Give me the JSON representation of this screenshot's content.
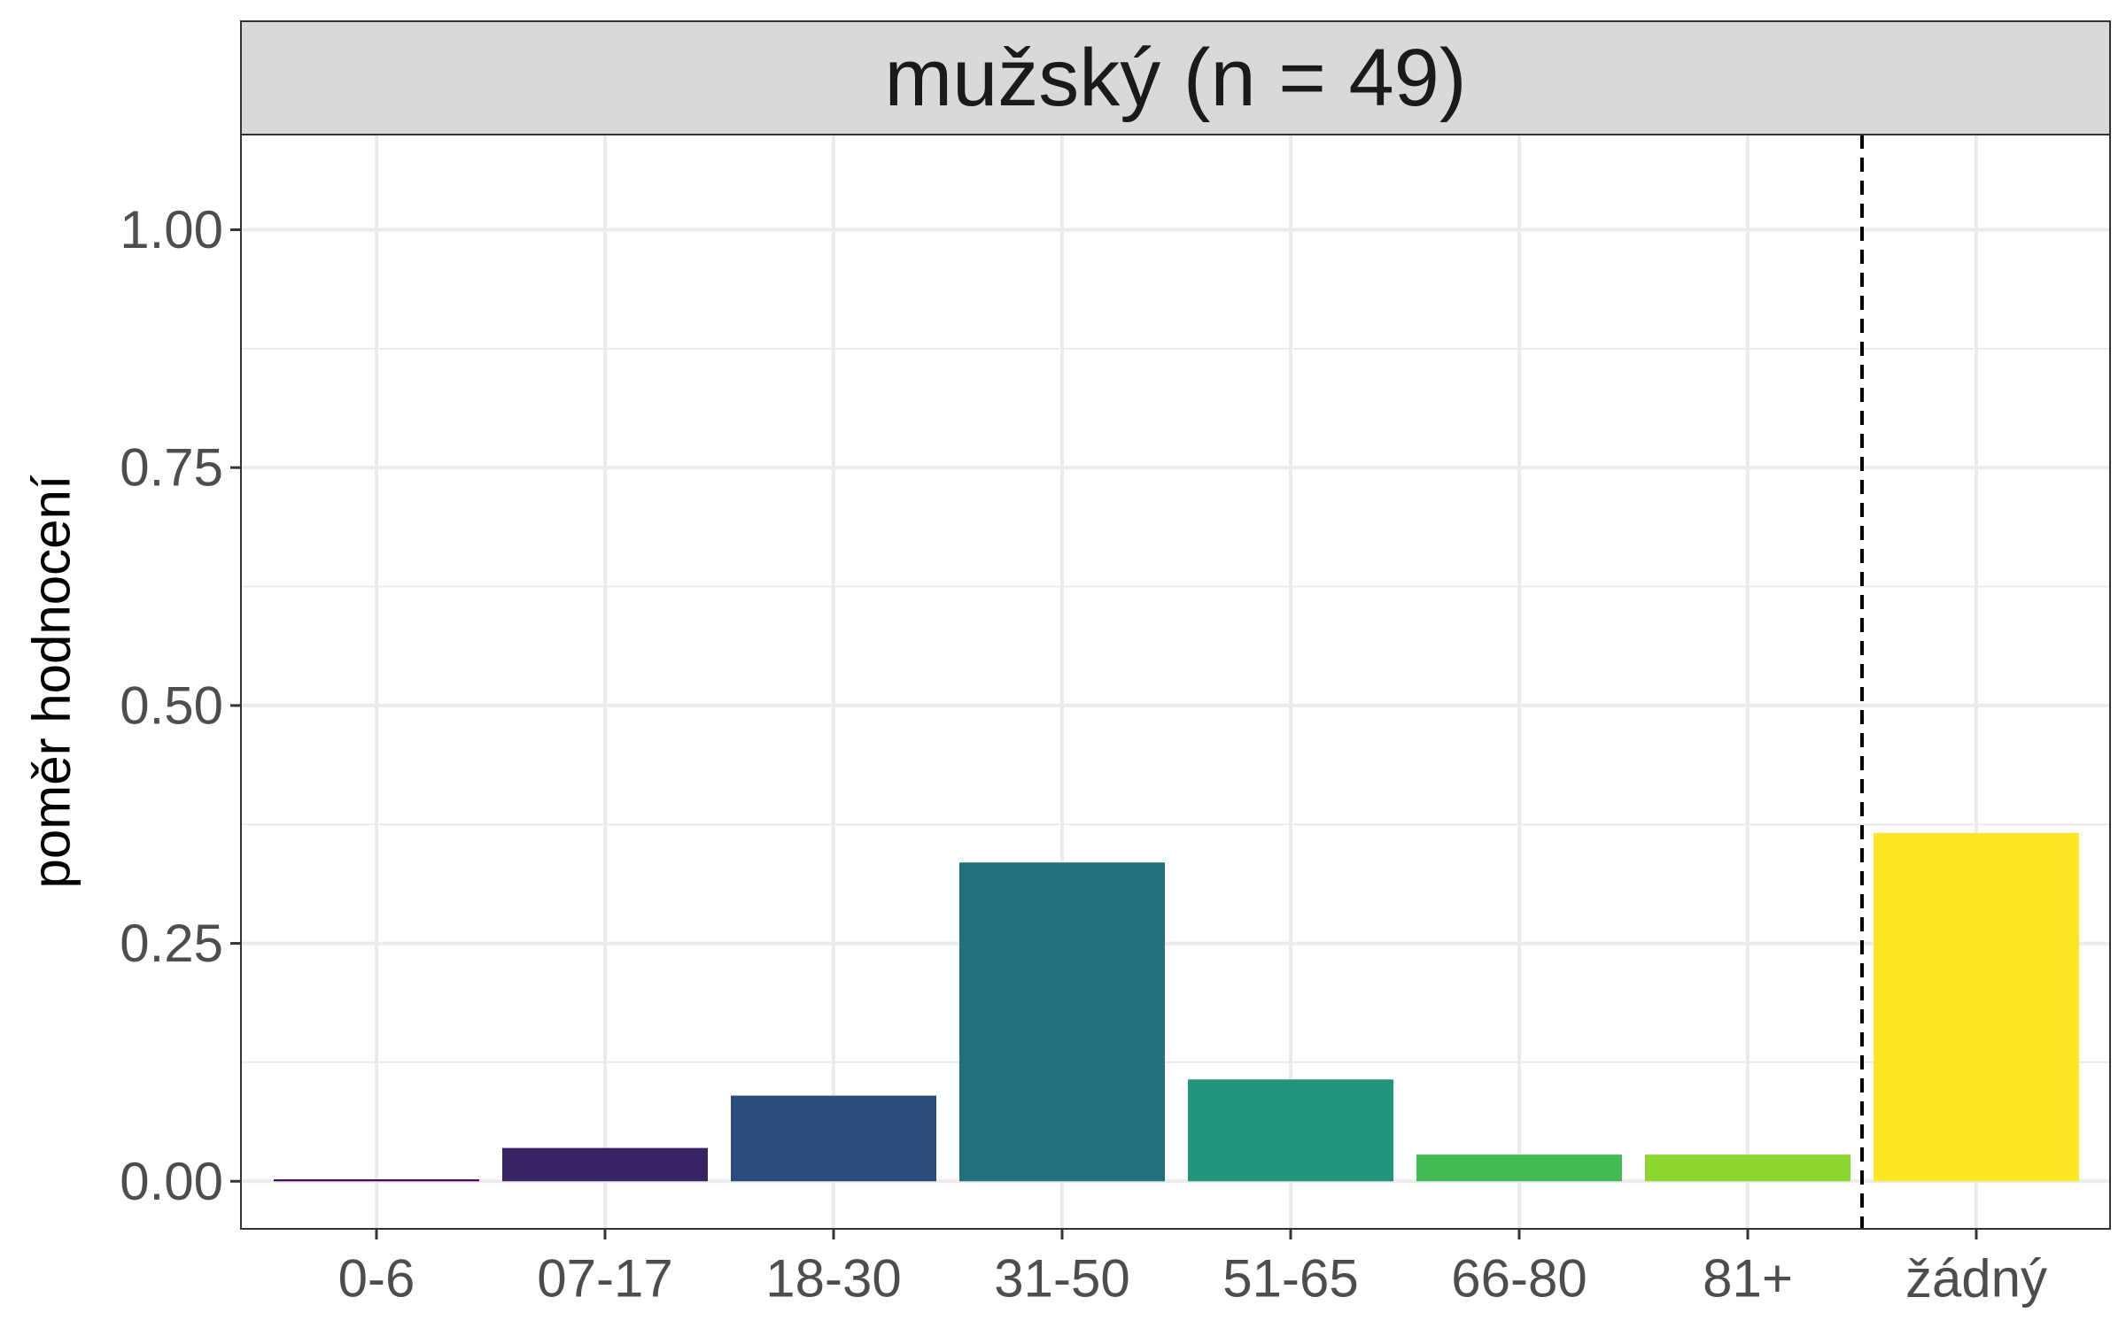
{
  "chart_data": {
    "type": "bar",
    "title": "mužský (n = 49)",
    "xlabel": "",
    "ylabel": "poměr hodnocení",
    "categories": [
      "0-6",
      "07-17",
      "18-30",
      "31-50",
      "51-65",
      "66-80",
      "81+",
      "žádný"
    ],
    "values": [
      0.002,
      0.035,
      0.09,
      0.335,
      0.107,
      0.028,
      0.028,
      0.366
    ],
    "colors": [
      "#440154",
      "#362465",
      "#2a4b7b",
      "#21707e",
      "#21967a",
      "#42bb55",
      "#8dd62e",
      "#fde725"
    ],
    "ylim": [
      -0.05,
      1.1
    ],
    "yticks": [
      0.0,
      0.25,
      0.5,
      0.75,
      1.0
    ],
    "ytick_labels": [
      "0.00",
      "0.25",
      "0.50",
      "0.75",
      "1.00"
    ],
    "grid": true,
    "separator_after_category": "81+",
    "separator_style": "dashed"
  }
}
